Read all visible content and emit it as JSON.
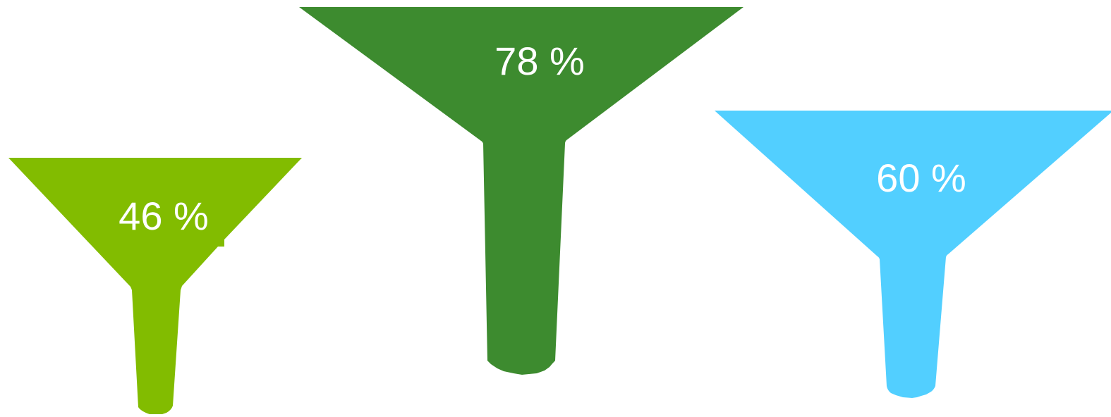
{
  "funnels": [
    {
      "label": "46 %",
      "value": 46,
      "color": "#82BC00"
    },
    {
      "label": "78 %",
      "value": 78,
      "color": "#3D8B2F"
    },
    {
      "label": "60 %",
      "value": 60,
      "color": "#52CFFF"
    }
  ]
}
